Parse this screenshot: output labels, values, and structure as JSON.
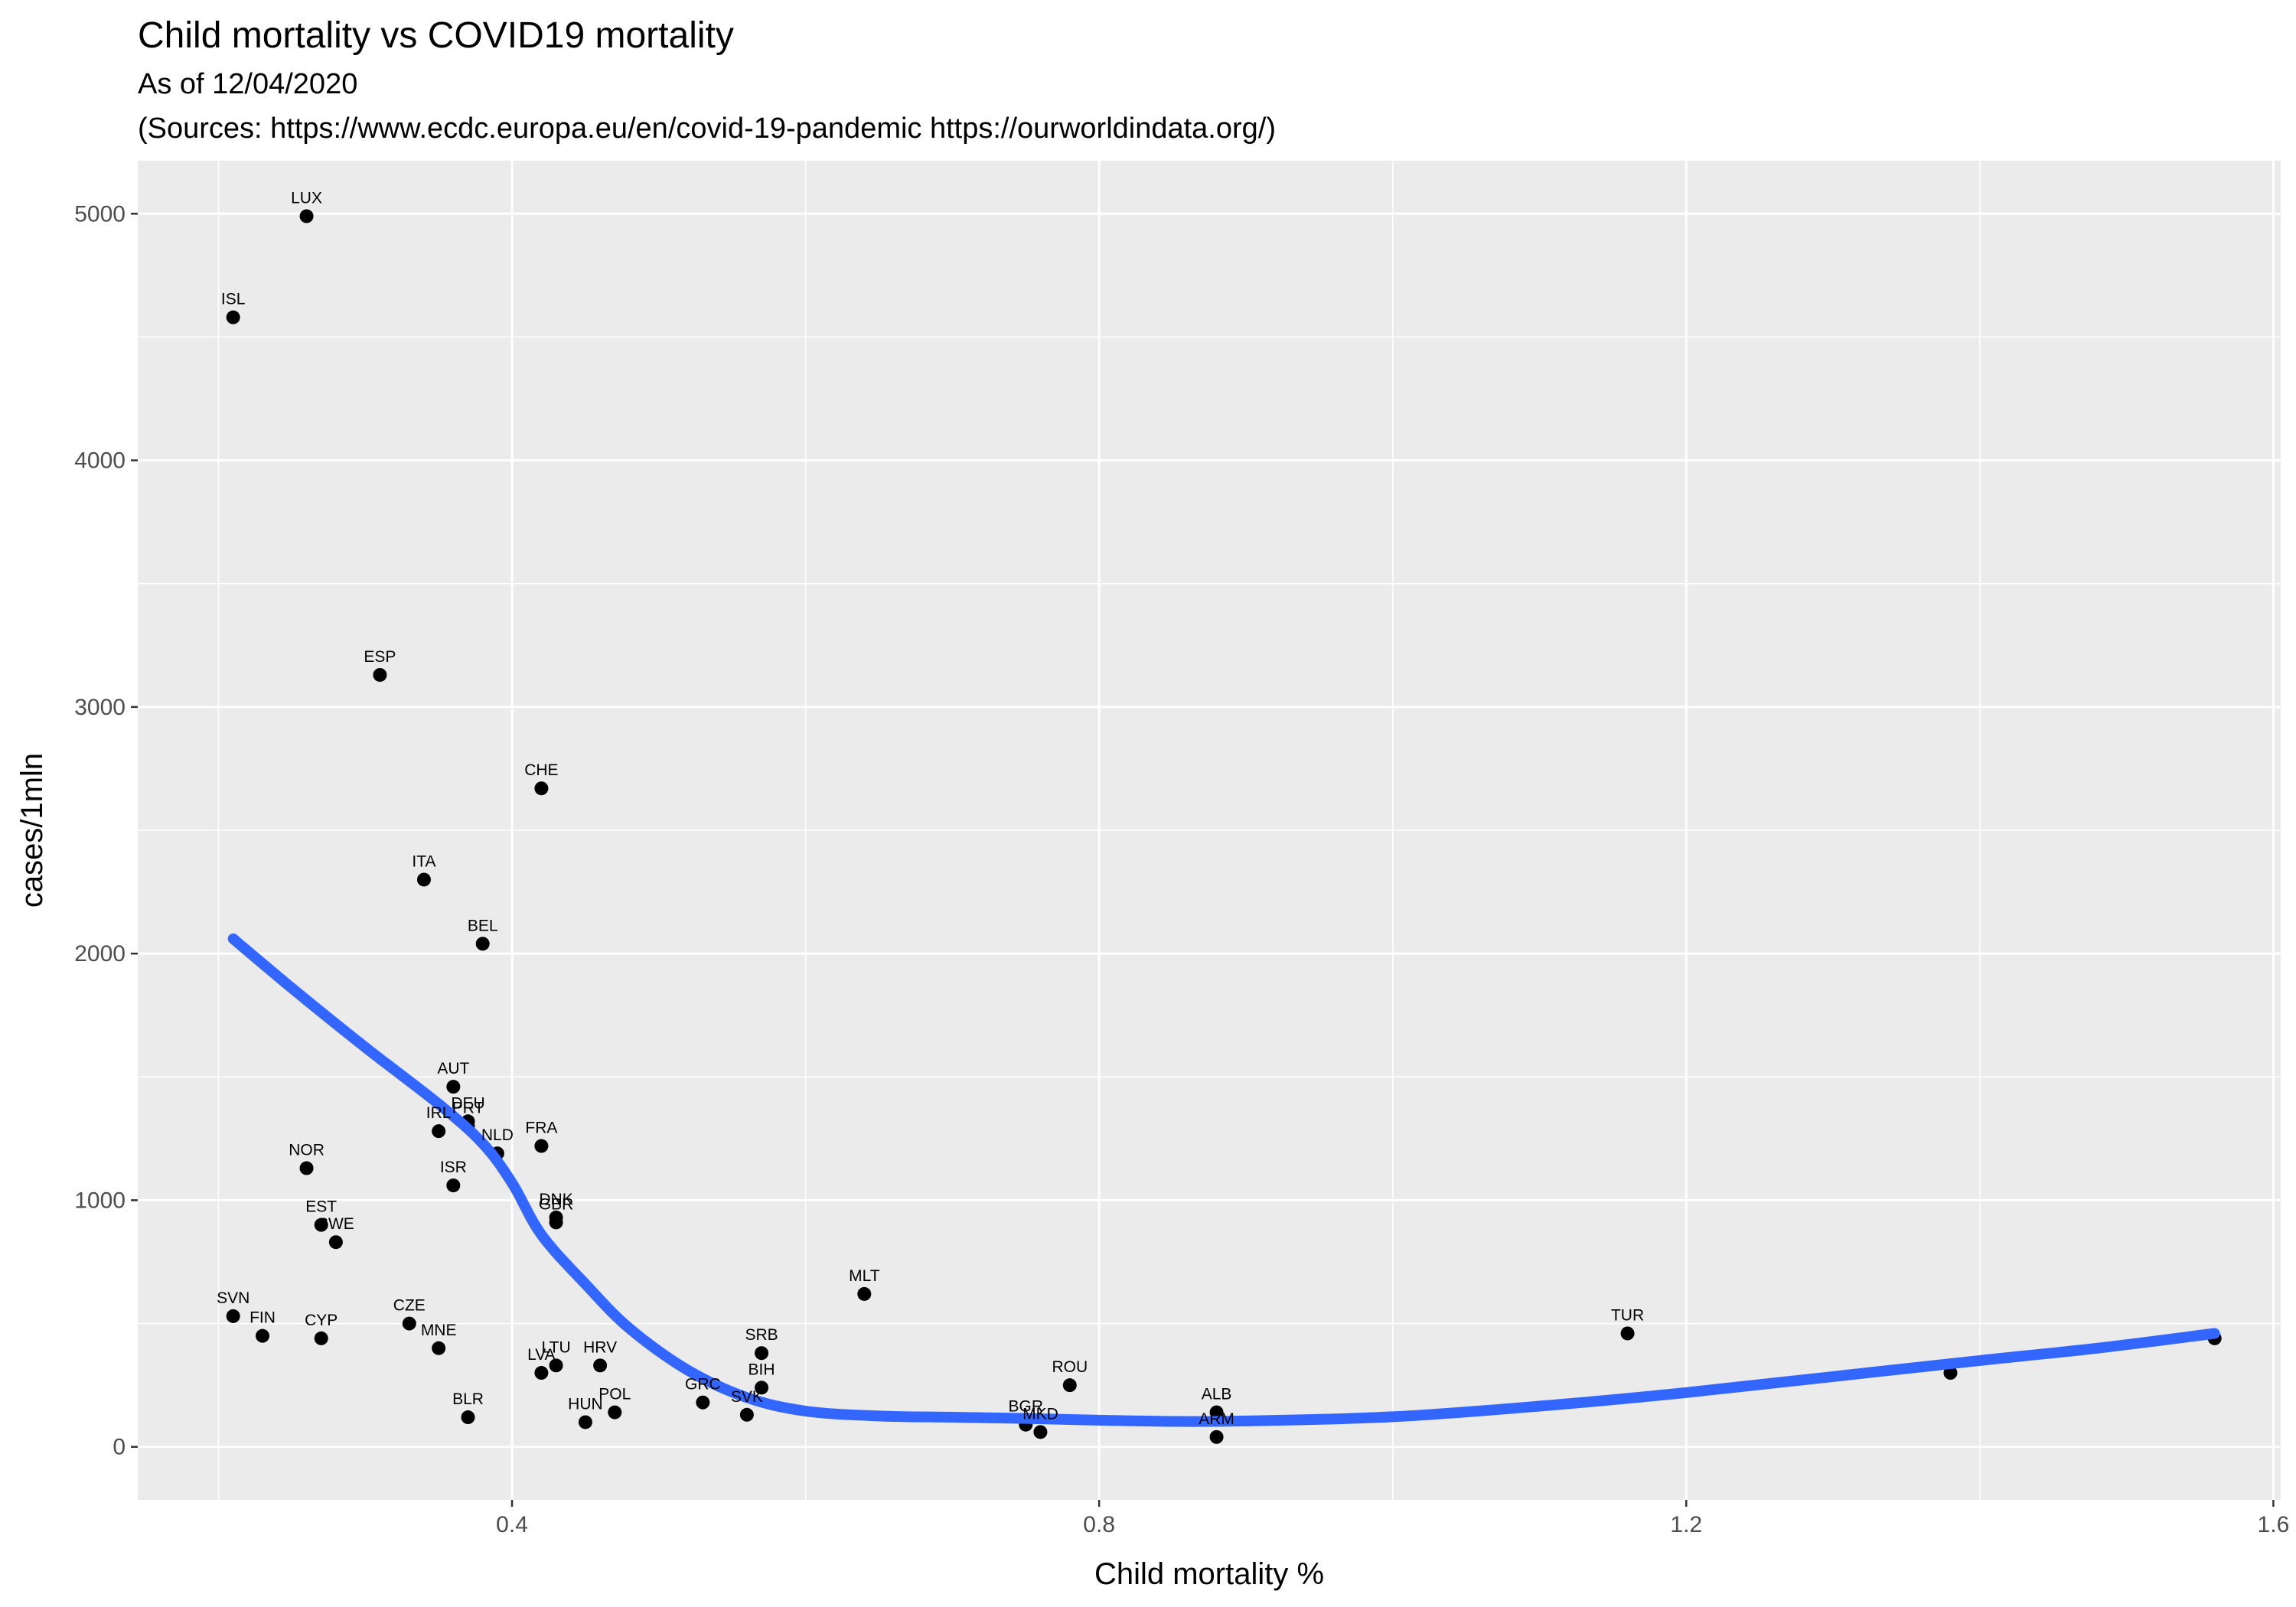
{
  "chart_data": {
    "type": "scatter",
    "title": "Child mortality vs COVID19 mortality",
    "subtitle_lines": [
      "As of 12/04/2020",
      "(Sources: https://www.ecdc.europa.eu/en/covid-19-pandemic https://ourworldindata.org/)"
    ],
    "xlabel": "Child mortality %",
    "ylabel": "cases/1mln",
    "xlim": [
      0.145,
      1.605
    ],
    "ylim": [
      -215,
      5215
    ],
    "x_ticks": [
      0.4,
      0.8,
      1.2,
      1.6
    ],
    "x_tick_labels": [
      "0.4",
      "0.8",
      "1.2",
      "1.6"
    ],
    "x_minor_ticks": [
      0.2,
      0.6,
      1.0,
      1.4
    ],
    "y_ticks": [
      0,
      1000,
      2000,
      3000,
      4000,
      5000
    ],
    "y_tick_labels": [
      "0",
      "1000",
      "2000",
      "3000",
      "4000",
      "5000"
    ],
    "y_minor_ticks": [
      500,
      1500,
      2500,
      3500,
      4500
    ],
    "grid": true,
    "colors": {
      "panel": "#ebebeb",
      "grid": "#ffffff",
      "point": "#000000",
      "trend": "#3366ff"
    },
    "points": [
      {
        "label": "LUX",
        "x": 0.26,
        "y": 4990
      },
      {
        "label": "ISL",
        "x": 0.21,
        "y": 4580
      },
      {
        "label": "ESP",
        "x": 0.31,
        "y": 3130
      },
      {
        "label": "CHE",
        "x": 0.42,
        "y": 2670
      },
      {
        "label": "ITA",
        "x": 0.34,
        "y": 2300
      },
      {
        "label": "BEL",
        "x": 0.38,
        "y": 2040
      },
      {
        "label": "AUT",
        "x": 0.36,
        "y": 1460
      },
      {
        "label": "DEU",
        "x": 0.37,
        "y": 1320
      },
      {
        "label": "PRT",
        "x": 0.37,
        "y": 1300
      },
      {
        "label": "IRL",
        "x": 0.35,
        "y": 1280
      },
      {
        "label": "NLD",
        "x": 0.39,
        "y": 1190
      },
      {
        "label": "FRA",
        "x": 0.42,
        "y": 1220
      },
      {
        "label": "NOR",
        "x": 0.26,
        "y": 1130
      },
      {
        "label": "ISR",
        "x": 0.36,
        "y": 1060
      },
      {
        "label": "DNK",
        "x": 0.43,
        "y": 930
      },
      {
        "label": "GBR",
        "x": 0.43,
        "y": 910
      },
      {
        "label": "EST",
        "x": 0.27,
        "y": 900
      },
      {
        "label": "SWE",
        "x": 0.28,
        "y": 830
      },
      {
        "label": "MLT",
        "x": 0.64,
        "y": 620
      },
      {
        "label": "SVN",
        "x": 0.21,
        "y": 530
      },
      {
        "label": "FIN",
        "x": 0.23,
        "y": 450
      },
      {
        "label": "CYP",
        "x": 0.27,
        "y": 440
      },
      {
        "label": "CZE",
        "x": 0.33,
        "y": 500
      },
      {
        "label": "MNE",
        "x": 0.35,
        "y": 400
      },
      {
        "label": "SRB",
        "x": 0.57,
        "y": 380
      },
      {
        "label": "HRV",
        "x": 0.46,
        "y": 330
      },
      {
        "label": "LTU",
        "x": 0.43,
        "y": 330
      },
      {
        "label": "LVA",
        "x": 0.42,
        "y": 300
      },
      {
        "label": "BIH",
        "x": 0.57,
        "y": 240
      },
      {
        "label": "ROU",
        "x": 0.78,
        "y": 250
      },
      {
        "label": "GRC",
        "x": 0.53,
        "y": 180
      },
      {
        "label": "POL",
        "x": 0.47,
        "y": 140
      },
      {
        "label": "SVK",
        "x": 0.56,
        "y": 130
      },
      {
        "label": "BLR",
        "x": 0.37,
        "y": 120
      },
      {
        "label": "HUN",
        "x": 0.45,
        "y": 100
      },
      {
        "label": "ALB",
        "x": 0.88,
        "y": 140
      },
      {
        "label": "BGR",
        "x": 0.75,
        "y": 90
      },
      {
        "label": "MKD",
        "x": 0.76,
        "y": 60
      },
      {
        "label": "ARM",
        "x": 0.88,
        "y": 40
      },
      {
        "label": "TUR",
        "x": 1.16,
        "y": 460
      },
      {
        "label": "",
        "x": 1.38,
        "y": 300
      },
      {
        "label": "",
        "x": 1.56,
        "y": 440
      }
    ],
    "trend_line": [
      {
        "x": 0.21,
        "y": 2060
      },
      {
        "x": 0.25,
        "y": 1860
      },
      {
        "x": 0.3,
        "y": 1620
      },
      {
        "x": 0.35,
        "y": 1390
      },
      {
        "x": 0.38,
        "y": 1230
      },
      {
        "x": 0.4,
        "y": 1070
      },
      {
        "x": 0.42,
        "y": 860
      },
      {
        "x": 0.45,
        "y": 660
      },
      {
        "x": 0.48,
        "y": 480
      },
      {
        "x": 0.52,
        "y": 310
      },
      {
        "x": 0.56,
        "y": 200
      },
      {
        "x": 0.6,
        "y": 145
      },
      {
        "x": 0.65,
        "y": 125
      },
      {
        "x": 0.7,
        "y": 120
      },
      {
        "x": 0.75,
        "y": 115
      },
      {
        "x": 0.8,
        "y": 108
      },
      {
        "x": 0.85,
        "y": 103
      },
      {
        "x": 0.9,
        "y": 105
      },
      {
        "x": 1.0,
        "y": 122
      },
      {
        "x": 1.1,
        "y": 165
      },
      {
        "x": 1.2,
        "y": 220
      },
      {
        "x": 1.3,
        "y": 285
      },
      {
        "x": 1.4,
        "y": 350
      },
      {
        "x": 1.48,
        "y": 400
      },
      {
        "x": 1.56,
        "y": 460
      }
    ]
  }
}
